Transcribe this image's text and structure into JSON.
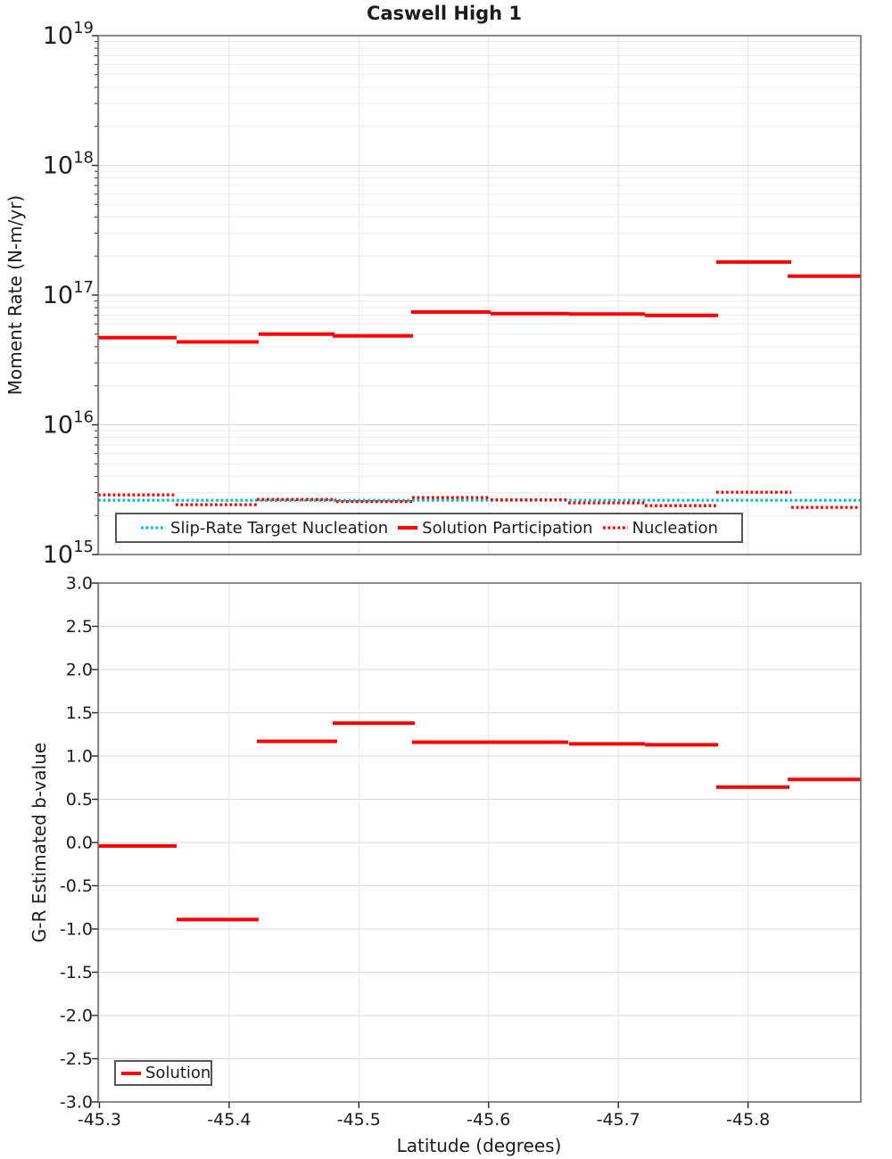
{
  "title": "Caswell High 1",
  "colors": {
    "solution": "#ff0000",
    "nucleation": "#ff0000",
    "target": "#00bfc5",
    "frame": "#6e6e6e",
    "tick": "#262626",
    "grid_major": "#d9d9d9",
    "grid_minor": "#ececec",
    "grid_vertical": "#e4e4e4",
    "legend_border": "#565656",
    "text": "#1c1c1c"
  },
  "x_axis": {
    "label": "Latitude (degrees)",
    "lim": [
      -45.299,
      -45.8869
    ],
    "ticks": [
      -45.3,
      -45.4,
      -45.5,
      -45.6,
      -45.7,
      -45.8
    ],
    "tick_labels": [
      "-45.3",
      "-45.4",
      "-45.5",
      "-45.6",
      "-45.7",
      "-45.8"
    ]
  },
  "chart_data": [
    {
      "type": "line",
      "title": "Caswell High 1",
      "ylabel": "Moment Rate (N-m/yr)",
      "yscale": "log",
      "ylim": [
        1000000000000000.0,
        1e+19
      ],
      "y_tick_exponents": [
        15,
        16,
        17,
        18,
        19
      ],
      "grid": true,
      "legend_position": "lower-center-inside",
      "legend": [
        {
          "label": "Slip-Rate Target Nucleation",
          "style": "dotted",
          "color_key": "target"
        },
        {
          "label": "Solution Participation",
          "style": "solid",
          "color_key": "solution"
        },
        {
          "label": "Nucleation",
          "style": "dotted",
          "color_key": "nucleation"
        }
      ],
      "series": [
        {
          "name": "Slip-Rate Target Nucleation",
          "style": "dotted",
          "color_key": "target",
          "segments": [
            [
              -45.299,
              -45.8869,
              2620000000000000.0
            ]
          ]
        },
        {
          "name": "Nucleation",
          "style": "dotted",
          "color_key": "nucleation",
          "segments": [
            [
              -45.299,
              -45.3595,
              2880000000000000.0
            ],
            [
              -45.3588,
              -45.4214,
              2420000000000000.0
            ],
            [
              -45.4214,
              -45.4825,
              2660000000000000.0
            ],
            [
              -45.4825,
              -45.541,
              2560000000000000.0
            ],
            [
              -45.541,
              -45.6015,
              2750000000000000.0
            ],
            [
              -45.6015,
              -45.6614,
              2640000000000000.0
            ],
            [
              -45.6614,
              -45.7205,
              2500000000000000.0
            ],
            [
              -45.7205,
              -45.7755,
              2380000000000000.0
            ],
            [
              -45.7755,
              -45.8333,
              3020000000000000.0
            ],
            [
              -45.8333,
              -45.8869,
              2310000000000000.0
            ]
          ]
        },
        {
          "name": "Solution Participation",
          "style": "solid",
          "color_key": "solution",
          "segments": [
            [
              -45.299,
              -45.3595,
              4.7e+16
            ],
            [
              -45.3595,
              -45.4227,
              4.36e+16
            ],
            [
              -45.4227,
              -45.4812,
              5e+16
            ],
            [
              -45.4798,
              -45.5417,
              4.85e+16
            ],
            [
              -45.5403,
              -45.6015,
              7.4e+16
            ],
            [
              -45.6015,
              -45.662,
              7.2e+16
            ],
            [
              -45.662,
              -45.7205,
              7.15e+16
            ],
            [
              -45.7205,
              -45.7769,
              6.98e+16
            ],
            [
              -45.7755,
              -45.8333,
              1.8e+17
            ],
            [
              -45.8306,
              -45.8869,
              1.4e+17
            ]
          ]
        }
      ]
    },
    {
      "type": "line",
      "ylabel": "G-R Estimated b-value",
      "xlabel": "Latitude (degrees)",
      "yscale": "linear",
      "ylim": [
        -3.0,
        3.0
      ],
      "y_ticks": [
        3.0,
        2.5,
        2.0,
        1.5,
        1.0,
        0.5,
        0.0,
        -0.5,
        -1.0,
        -1.5,
        -2.0,
        -2.5,
        -3.0
      ],
      "y_tick_labels": [
        "3.0",
        "2.5",
        "2.0",
        "1.5",
        "1.0",
        "0.5",
        "0.0",
        "-0.5",
        "-1.0",
        "-1.5",
        "-2.0",
        "-2.5",
        "-3.0"
      ],
      "grid": true,
      "legend_position": "lower-left-inside",
      "legend": [
        {
          "label": "Solution",
          "style": "solid",
          "color_key": "solution"
        }
      ],
      "series": [
        {
          "name": "Solution",
          "style": "solid",
          "color_key": "solution",
          "segments": [
            [
              -45.299,
              -45.3595,
              -0.04
            ],
            [
              -45.3595,
              -45.4227,
              -0.89
            ],
            [
              -45.4214,
              -45.4832,
              1.17
            ],
            [
              -45.4798,
              -45.5431,
              1.38
            ],
            [
              -45.541,
              -45.6022,
              1.16
            ],
            [
              -45.6015,
              -45.6614,
              1.16
            ],
            [
              -45.662,
              -45.7205,
              1.14
            ],
            [
              -45.7205,
              -45.7769,
              1.13
            ],
            [
              -45.7755,
              -45.8319,
              0.64
            ],
            [
              -45.8306,
              -45.8869,
              0.73
            ]
          ]
        }
      ]
    }
  ]
}
